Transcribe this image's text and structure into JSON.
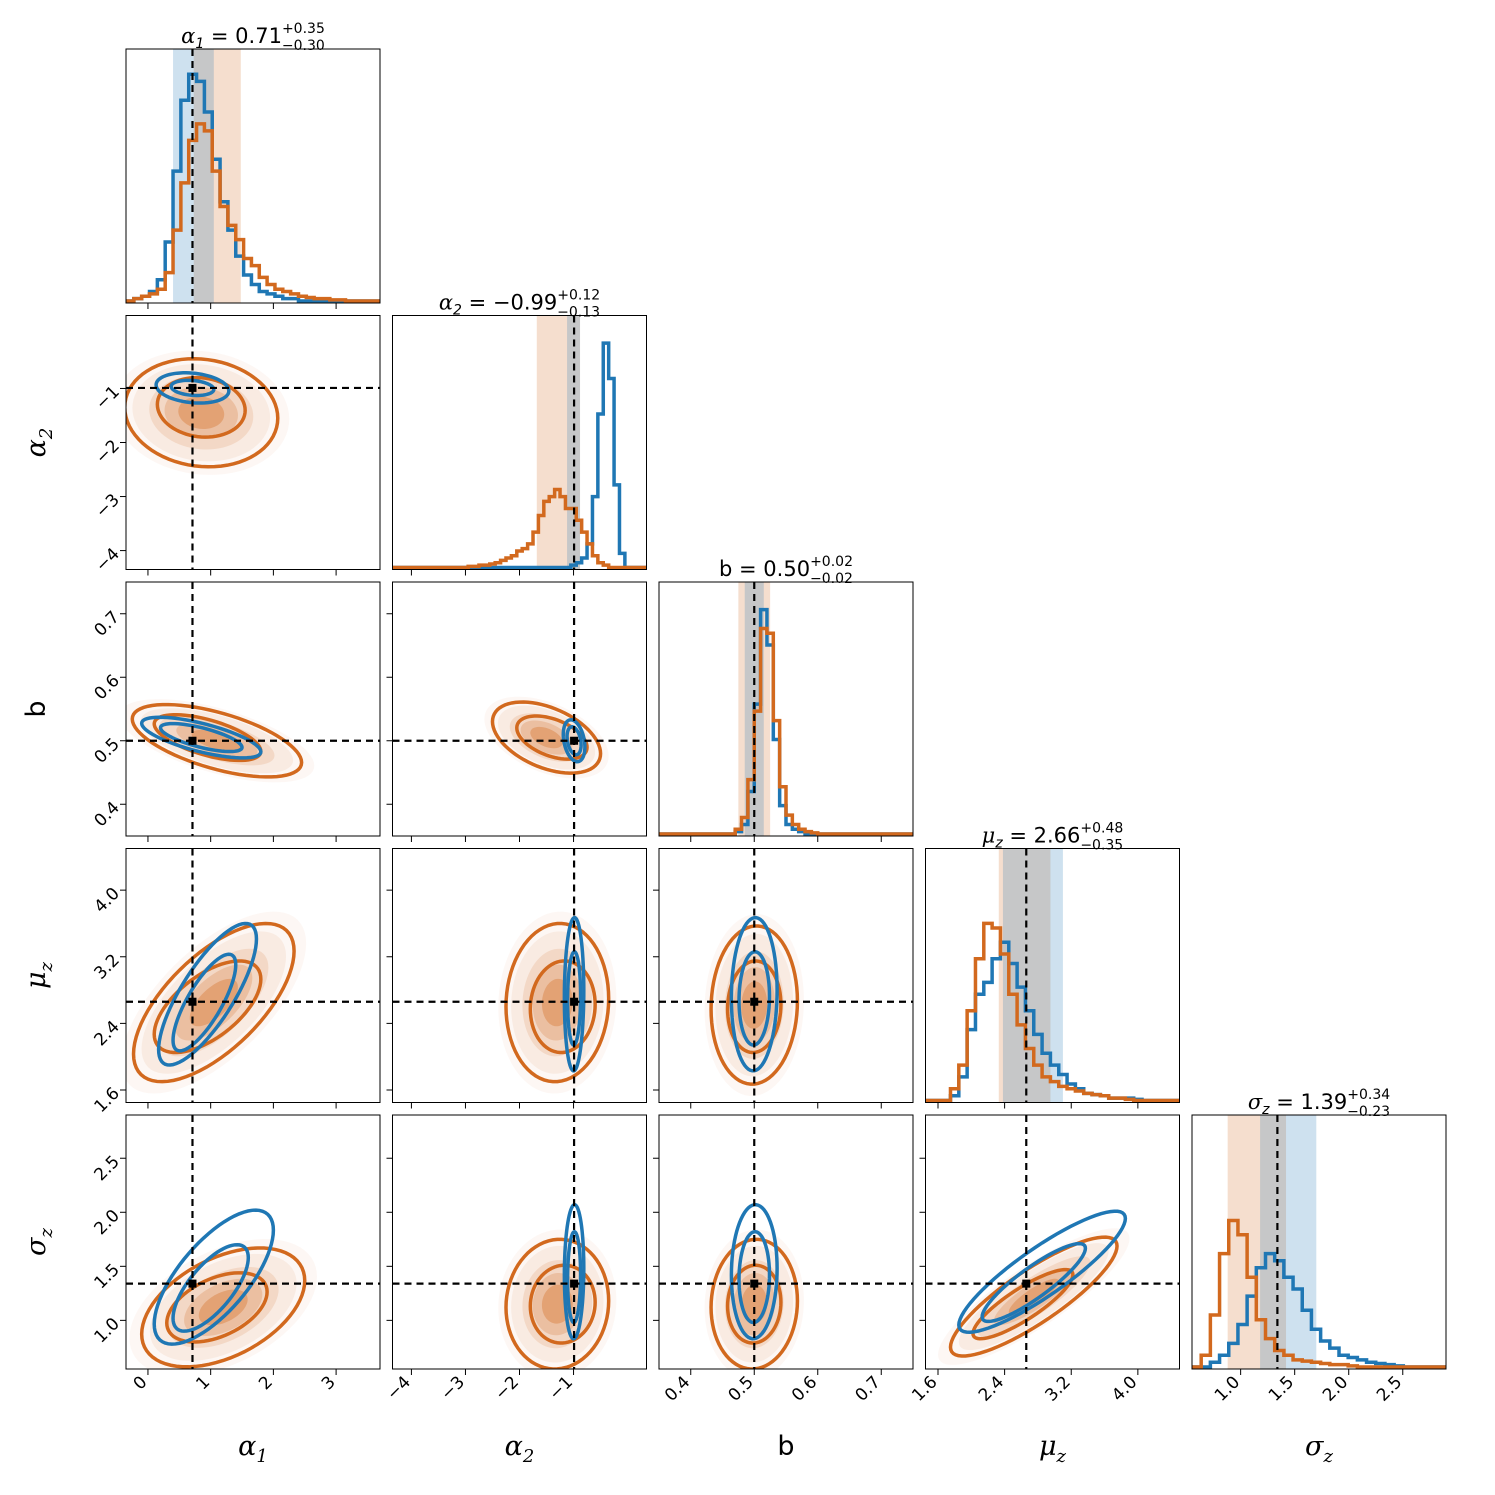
{
  "chart_data": {
    "type": "corner",
    "parameters": [
      {
        "key": "a1",
        "label_base": "α",
        "label_sub": "1",
        "italic": true,
        "range": [
          -0.35,
          3.7
        ],
        "ticks": [
          0,
          1,
          2,
          3
        ],
        "tick_labels": [
          "0",
          "1",
          "2",
          "3"
        ],
        "truth": 0.71,
        "median": 0.71,
        "plus": 0.35,
        "minus": 0.3,
        "title_value": "0.71",
        "title_plus": "+0.35",
        "title_minus": "−0.30"
      },
      {
        "key": "a2",
        "label_base": "α",
        "label_sub": "2",
        "italic": true,
        "range": [
          -4.35,
          0.35
        ],
        "ticks": [
          -4,
          -3,
          -2,
          -1
        ],
        "tick_labels": [
          "−4",
          "−3",
          "−2",
          "−1"
        ],
        "truth": -0.99,
        "median": -0.99,
        "plus": 0.12,
        "minus": 0.13,
        "title_value": "−0.99",
        "title_plus": "+0.12",
        "title_minus": "−0.13"
      },
      {
        "key": "b",
        "label_base": "b",
        "label_sub": "",
        "italic": false,
        "range": [
          0.35,
          0.75
        ],
        "ticks": [
          0.4,
          0.5,
          0.6,
          0.7
        ],
        "tick_labels": [
          "0.4",
          "0.5",
          "0.6",
          "0.7"
        ],
        "truth": 0.5,
        "median": 0.5,
        "plus": 0.02,
        "minus": 0.02,
        "title_value": "0.50",
        "title_plus": "+0.02",
        "title_minus": "−0.02"
      },
      {
        "key": "mz",
        "label_base": "μ",
        "label_sub": "z",
        "italic": true,
        "range": [
          1.45,
          4.5
        ],
        "ticks": [
          1.6,
          2.4,
          3.2,
          4.0
        ],
        "tick_labels": [
          "1.6",
          "2.4",
          "3.2",
          "4.0"
        ],
        "truth": 2.66,
        "median": 2.66,
        "plus": 0.48,
        "minus": 0.35,
        "title_value": "2.66",
        "title_plus": "+0.48",
        "title_minus": "−0.35"
      },
      {
        "key": "sz",
        "label_base": "σ",
        "label_sub": "z",
        "italic": true,
        "range": [
          0.55,
          2.9
        ],
        "ticks": [
          1.0,
          1.5,
          2.0,
          2.5
        ],
        "tick_labels": [
          "1.0",
          "1.5",
          "2.0",
          "2.5"
        ],
        "truth": 1.34,
        "median": 1.39,
        "plus": 0.34,
        "minus": 0.23,
        "title_value": "1.39",
        "title_plus": "+0.34",
        "title_minus": "−0.23"
      }
    ],
    "series": [
      {
        "name": "blue",
        "color": "#1f77b4"
      },
      {
        "name": "orange",
        "color": "#d2691e"
      }
    ],
    "credible_intervals": {
      "blue": [
        [
          0.4,
          1.05
        ],
        [
          -1.12,
          -0.88
        ],
        [
          0.485,
          0.515
        ],
        [
          2.38,
          3.1
        ],
        [
          1.18,
          1.7
        ]
      ],
      "orange": [
        [
          0.73,
          1.48
        ],
        [
          -1.68,
          -0.88
        ],
        [
          0.475,
          0.525
        ],
        [
          2.33,
          2.95
        ],
        [
          0.88,
          1.42
        ]
      ]
    },
    "histograms": {
      "blue": [
        {
          "start": -0.35,
          "width": 0.125,
          "counts": [
            0,
            0.01,
            0.02,
            0.04,
            0.09,
            0.25,
            0.55,
            0.85,
            0.96,
            0.93,
            0.8,
            0.6,
            0.42,
            0.3,
            0.19,
            0.11,
            0.07,
            0.04,
            0.03,
            0.02,
            0.01,
            0.01,
            0,
            0,
            0,
            0,
            0,
            0,
            0,
            0,
            0,
            0,
            0
          ]
        },
        {
          "start": -4.35,
          "width": 0.1,
          "counts": [
            0,
            0,
            0,
            0,
            0,
            0,
            0,
            0,
            0,
            0,
            0,
            0,
            0,
            0,
            0,
            0,
            0,
            0,
            0,
            0,
            0,
            0,
            0,
            0,
            0,
            0,
            0,
            0,
            0,
            0,
            0,
            0,
            0,
            0.01,
            0.02,
            0.04,
            0.1,
            0.3,
            0.65,
            0.95,
            0.8,
            0.35,
            0.06,
            0,
            0,
            0,
            0
          ]
        },
        {
          "start": 0.35,
          "width": 0.01,
          "counts": [
            0,
            0,
            0,
            0,
            0,
            0,
            0,
            0,
            0,
            0,
            0,
            0,
            0.01,
            0.04,
            0.18,
            0.55,
            0.95,
            0.8,
            0.4,
            0.12,
            0.04,
            0.02,
            0.01,
            0,
            0,
            0,
            0,
            0,
            0,
            0,
            0,
            0,
            0,
            0,
            0,
            0,
            0,
            0,
            0,
            0
          ]
        },
        {
          "start": 1.45,
          "width": 0.1,
          "counts": [
            0,
            0,
            0,
            0.02,
            0.1,
            0.3,
            0.45,
            0.5,
            0.6,
            0.67,
            0.58,
            0.48,
            0.38,
            0.28,
            0.2,
            0.15,
            0.11,
            0.07,
            0.05,
            0.03,
            0.025,
            0.02,
            0.01,
            0.01,
            0.01,
            0.005,
            0,
            0,
            0,
            0,
            0
          ]
        },
        {
          "start": 0.55,
          "width": 0.085,
          "counts": [
            0,
            0,
            0.02,
            0.05,
            0.1,
            0.18,
            0.3,
            0.42,
            0.48,
            0.45,
            0.38,
            0.33,
            0.24,
            0.16,
            0.11,
            0.08,
            0.05,
            0.04,
            0.03,
            0.02,
            0.015,
            0.01,
            0.005,
            0,
            0,
            0,
            0,
            0
          ]
        }
      ],
      "orange": [
        {
          "start": -0.35,
          "width": 0.125,
          "counts": [
            0,
            0.01,
            0.02,
            0.03,
            0.05,
            0.12,
            0.3,
            0.5,
            0.68,
            0.75,
            0.72,
            0.55,
            0.4,
            0.32,
            0.26,
            0.18,
            0.15,
            0.1,
            0.07,
            0.05,
            0.04,
            0.03,
            0.02,
            0.015,
            0.01,
            0.01,
            0.005,
            0.005,
            0,
            0,
            0,
            0,
            0
          ]
        },
        {
          "start": -4.35,
          "width": 0.1,
          "counts": [
            0,
            0,
            0,
            0,
            0,
            0,
            0,
            0,
            0,
            0,
            0,
            0,
            0,
            0,
            0.005,
            0.005,
            0.01,
            0.01,
            0.015,
            0.02,
            0.03,
            0.04,
            0.05,
            0.07,
            0.08,
            0.1,
            0.15,
            0.22,
            0.28,
            0.3,
            0.33,
            0.3,
            0.25,
            0.25,
            0.2,
            0.15,
            0.1,
            0.05,
            0.02,
            0.01,
            0,
            0,
            0,
            0,
            0,
            0,
            0
          ]
        },
        {
          "start": 0.35,
          "width": 0.01,
          "counts": [
            0,
            0,
            0,
            0,
            0,
            0,
            0,
            0,
            0,
            0,
            0,
            0,
            0.02,
            0.07,
            0.23,
            0.52,
            0.87,
            0.85,
            0.48,
            0.2,
            0.08,
            0.04,
            0.02,
            0.01,
            0.005,
            0,
            0,
            0,
            0,
            0,
            0,
            0,
            0,
            0,
            0,
            0,
            0,
            0,
            0,
            0
          ]
        },
        {
          "start": 1.45,
          "width": 0.1,
          "counts": [
            0,
            0,
            0,
            0.05,
            0.15,
            0.38,
            0.6,
            0.75,
            0.73,
            0.62,
            0.45,
            0.32,
            0.22,
            0.15,
            0.1,
            0.08,
            0.06,
            0.05,
            0.04,
            0.03,
            0.025,
            0.02,
            0.01,
            0.01,
            0.005,
            0,
            0,
            0,
            0,
            0,
            0
          ]
        },
        {
          "start": 0.55,
          "width": 0.085,
          "counts": [
            0,
            0.05,
            0.22,
            0.48,
            0.62,
            0.56,
            0.38,
            0.2,
            0.12,
            0.07,
            0.05,
            0.03,
            0.025,
            0.02,
            0.015,
            0.01,
            0.01,
            0.005,
            0,
            0,
            0,
            0,
            0,
            0,
            0,
            0,
            0,
            0
          ]
        }
      ]
    },
    "contours": [
      {
        "i": 1,
        "j": 0,
        "blue": [
          {
            "cx": 0.71,
            "cy": -0.99,
            "sx": 0.58,
            "sy": 0.28,
            "rho": -0.2
          },
          {
            "cx": 0.71,
            "cy": -0.99,
            "sx": 0.34,
            "sy": 0.14,
            "rho": -0.2
          }
        ],
        "orange": [
          {
            "cx": 0.85,
            "cy": -1.45,
            "sx": 1.22,
            "sy": 1.0,
            "rho": -0.1
          },
          {
            "cx": 0.85,
            "cy": -1.35,
            "sx": 0.7,
            "sy": 0.55,
            "rho": -0.1
          }
        ]
      },
      {
        "i": 2,
        "j": 0,
        "blue": [
          {
            "cx": 0.85,
            "cy": 0.505,
            "sx": 0.95,
            "sy": 0.032,
            "rho": -0.7
          },
          {
            "cx": 0.85,
            "cy": 0.505,
            "sx": 0.65,
            "sy": 0.022,
            "rho": -0.7
          }
        ],
        "orange": [
          {
            "cx": 1.1,
            "cy": 0.5,
            "sx": 1.35,
            "sy": 0.057,
            "rho": -0.6
          },
          {
            "cx": 0.95,
            "cy": 0.505,
            "sx": 0.85,
            "sy": 0.036,
            "rho": -0.6
          }
        ]
      },
      {
        "i": 2,
        "j": 1,
        "blue": [
          {
            "cx": -0.99,
            "cy": 0.5,
            "sx": 0.2,
            "sy": 0.033,
            "rho": -0.3
          },
          {
            "cx": -0.99,
            "cy": 0.5,
            "sx": 0.13,
            "sy": 0.022,
            "rho": -0.3
          }
        ],
        "orange": [
          {
            "cx": -1.5,
            "cy": 0.505,
            "sx": 1.0,
            "sy": 0.056,
            "rho": -0.45
          },
          {
            "cx": -1.4,
            "cy": 0.505,
            "sx": 0.65,
            "sy": 0.034,
            "rho": -0.45
          }
        ]
      },
      {
        "i": 3,
        "j": 0,
        "blue": [
          {
            "cx": 0.95,
            "cy": 2.75,
            "sx": 0.78,
            "sy": 0.85,
            "rho": 0.78
          },
          {
            "cx": 0.9,
            "cy": 2.65,
            "sx": 0.5,
            "sy": 0.58,
            "rho": 0.78
          }
        ],
        "orange": [
          {
            "cx": 1.05,
            "cy": 2.65,
            "sx": 1.28,
            "sy": 0.95,
            "rho": 0.65
          },
          {
            "cx": 0.95,
            "cy": 2.6,
            "sx": 0.85,
            "sy": 0.55,
            "rho": 0.6
          }
        ]
      },
      {
        "i": 3,
        "j": 1,
        "blue": [
          {
            "cx": -0.99,
            "cy": 2.75,
            "sx": 0.18,
            "sy": 0.92,
            "rho": 0.05
          },
          {
            "cx": -0.99,
            "cy": 2.7,
            "sx": 0.12,
            "sy": 0.56,
            "rho": 0.05
          }
        ],
        "orange": [
          {
            "cx": -1.3,
            "cy": 2.65,
            "sx": 0.95,
            "sy": 0.95,
            "rho": 0.05
          },
          {
            "cx": -1.2,
            "cy": 2.6,
            "sx": 0.6,
            "sy": 0.55,
            "rho": 0.05
          }
        ]
      },
      {
        "i": 3,
        "j": 2,
        "blue": [
          {
            "cx": 0.5,
            "cy": 2.75,
            "sx": 0.036,
            "sy": 0.92,
            "rho": 0.05
          },
          {
            "cx": 0.5,
            "cy": 2.7,
            "sx": 0.024,
            "sy": 0.56,
            "rho": 0.05
          }
        ],
        "orange": [
          {
            "cx": 0.5,
            "cy": 2.62,
            "sx": 0.068,
            "sy": 0.95,
            "rho": 0.05
          },
          {
            "cx": 0.5,
            "cy": 2.6,
            "sx": 0.042,
            "sy": 0.55,
            "rho": 0.05
          }
        ]
      },
      {
        "i": 4,
        "j": 0,
        "blue": [
          {
            "cx": 1.05,
            "cy": 1.4,
            "sx": 0.95,
            "sy": 0.62,
            "rho": 0.7
          },
          {
            "cx": 1.0,
            "cy": 1.3,
            "sx": 0.6,
            "sy": 0.4,
            "rho": 0.7
          }
        ],
        "orange": [
          {
            "cx": 1.2,
            "cy": 1.12,
            "sx": 1.3,
            "sy": 0.55,
            "rho": 0.45
          },
          {
            "cx": 1.1,
            "cy": 1.12,
            "sx": 0.8,
            "sy": 0.32,
            "rho": 0.45
          }
        ]
      },
      {
        "i": 4,
        "j": 1,
        "blue": [
          {
            "cx": -0.99,
            "cy": 1.45,
            "sx": 0.18,
            "sy": 0.62,
            "rho": 0.05
          },
          {
            "cx": -0.99,
            "cy": 1.4,
            "sx": 0.12,
            "sy": 0.42,
            "rho": 0.05
          }
        ],
        "orange": [
          {
            "cx": -1.3,
            "cy": 1.15,
            "sx": 0.95,
            "sy": 0.6,
            "rho": 0.05
          },
          {
            "cx": -1.2,
            "cy": 1.15,
            "sx": 0.6,
            "sy": 0.36,
            "rho": 0.05
          }
        ]
      },
      {
        "i": 4,
        "j": 2,
        "blue": [
          {
            "cx": 0.5,
            "cy": 1.45,
            "sx": 0.036,
            "sy": 0.62,
            "rho": 0.05
          },
          {
            "cx": 0.5,
            "cy": 1.4,
            "sx": 0.024,
            "sy": 0.42,
            "rho": 0.05
          }
        ],
        "orange": [
          {
            "cx": 0.5,
            "cy": 1.15,
            "sx": 0.068,
            "sy": 0.6,
            "rho": 0.05
          },
          {
            "cx": 0.5,
            "cy": 1.15,
            "sx": 0.042,
            "sy": 0.36,
            "rho": 0.05
          }
        ]
      },
      {
        "i": 4,
        "j": 3,
        "blue": [
          {
            "cx": 2.85,
            "cy": 1.45,
            "sx": 1.0,
            "sy": 0.56,
            "rho": 0.88
          },
          {
            "cx": 2.75,
            "cy": 1.35,
            "sx": 0.62,
            "sy": 0.36,
            "rho": 0.88
          }
        ],
        "orange": [
          {
            "cx": 2.75,
            "cy": 1.22,
            "sx": 1.0,
            "sy": 0.55,
            "rho": 0.85
          },
          {
            "cx": 2.62,
            "cy": 1.15,
            "sx": 0.6,
            "sy": 0.32,
            "rho": 0.85
          }
        ]
      }
    ]
  }
}
